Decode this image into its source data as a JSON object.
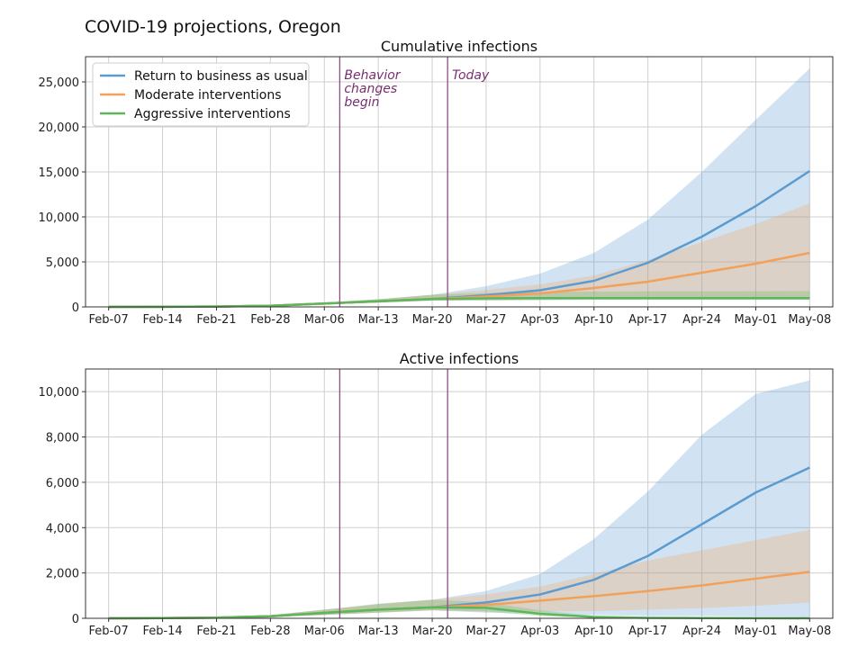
{
  "figure_title": "COVID-19 projections, Oregon",
  "colors": {
    "return_to_business": "#5b9bd0",
    "moderate": "#f3a05a",
    "aggressive": "#5fb65a",
    "event_line": "#8e4f86"
  },
  "chart_data": [
    {
      "type": "line",
      "title": "Cumulative infections",
      "xlabel": "",
      "ylabel": "",
      "x_tick_labels": [
        "Feb-07",
        "Feb-14",
        "Feb-21",
        "Feb-28",
        "Mar-06",
        "Mar-13",
        "Mar-20",
        "Mar-27",
        "Apr-03",
        "Apr-10",
        "Apr-17",
        "Apr-24",
        "May-01",
        "May-08"
      ],
      "xlim": [
        -3,
        94
      ],
      "ylim": [
        0,
        27800
      ],
      "y_ticks": [
        0,
        5000,
        10000,
        15000,
        20000,
        25000
      ],
      "y_tick_labels": [
        "0",
        "5,000",
        "10,000",
        "15,000",
        "20,000",
        "25,000"
      ],
      "x": [
        0,
        7,
        14,
        21,
        28,
        35,
        42,
        49,
        56,
        63,
        70,
        77,
        84,
        91
      ],
      "grid": true,
      "legend": {
        "position": "top-left"
      },
      "annotations": [
        {
          "x": 30,
          "label_lines": [
            "Behavior",
            "changes",
            "begin"
          ]
        },
        {
          "x": 44,
          "label_lines": [
            "Today"
          ]
        }
      ],
      "series": [
        {
          "name": "Return to business as usual",
          "color_key": "return_to_business",
          "values": [
            0,
            10,
            40,
            120,
            380,
            620,
            880,
            1300,
            1850,
            2900,
            4900,
            7800,
            11200,
            15100
          ],
          "lower": [
            0,
            8,
            30,
            90,
            300,
            480,
            700,
            700,
            750,
            800,
            800,
            800,
            800,
            800
          ],
          "upper": [
            0,
            14,
            60,
            180,
            480,
            850,
            1350,
            2300,
            3700,
            6000,
            9700,
            15000,
            20800,
            26500
          ]
        },
        {
          "name": "Moderate interventions",
          "color_key": "moderate",
          "values": [
            0,
            10,
            40,
            120,
            380,
            620,
            880,
            1150,
            1500,
            2100,
            2800,
            3800,
            4800,
            6000
          ],
          "lower": [
            0,
            8,
            30,
            90,
            300,
            480,
            700,
            750,
            800,
            850,
            900,
            900,
            950,
            950
          ],
          "upper": [
            0,
            14,
            60,
            180,
            480,
            850,
            1350,
            1900,
            2500,
            3500,
            5200,
            7200,
            9200,
            11500
          ]
        },
        {
          "name": "Aggressive interventions",
          "color_key": "aggressive",
          "values": [
            0,
            10,
            40,
            120,
            380,
            620,
            880,
            950,
            970,
            975,
            975,
            975,
            975,
            975
          ],
          "lower": [
            0,
            8,
            30,
            90,
            300,
            480,
            700,
            760,
            780,
            790,
            790,
            790,
            790,
            790
          ],
          "upper": [
            0,
            14,
            60,
            180,
            480,
            850,
            1350,
            1550,
            1650,
            1700,
            1720,
            1730,
            1740,
            1750
          ]
        }
      ]
    },
    {
      "type": "line",
      "title": "Active infections",
      "xlabel": "",
      "ylabel": "",
      "x_tick_labels": [
        "Feb-07",
        "Feb-14",
        "Feb-21",
        "Feb-28",
        "Mar-06",
        "Mar-13",
        "Mar-20",
        "Mar-27",
        "Apr-03",
        "Apr-10",
        "Apr-17",
        "Apr-24",
        "May-01",
        "May-08"
      ],
      "xlim": [
        -3,
        94
      ],
      "ylim": [
        0,
        11000
      ],
      "y_ticks": [
        0,
        2000,
        4000,
        6000,
        8000,
        10000
      ],
      "y_tick_labels": [
        "0",
        "2,000",
        "4,000",
        "6,000",
        "8,000",
        "10,000"
      ],
      "x": [
        0,
        7,
        14,
        21,
        28,
        35,
        42,
        49,
        56,
        63,
        70,
        77,
        84,
        91
      ],
      "grid": true,
      "annotations": [
        {
          "x": 30,
          "label_lines": []
        },
        {
          "x": 44,
          "label_lines": []
        }
      ],
      "series": [
        {
          "name": "Return to business as usual",
          "color_key": "return_to_business",
          "values": [
            0,
            10,
            30,
            90,
            240,
            380,
            480,
            700,
            1050,
            1700,
            2750,
            4150,
            5550,
            6650
          ],
          "lower": [
            0,
            5,
            20,
            60,
            150,
            250,
            350,
            250,
            200,
            150,
            100,
            100,
            80,
            50
          ],
          "upper": [
            0,
            15,
            50,
            140,
            380,
            620,
            820,
            1200,
            1950,
            3500,
            5600,
            8100,
            9900,
            10500
          ]
        },
        {
          "name": "Moderate interventions",
          "color_key": "moderate",
          "values": [
            0,
            10,
            30,
            90,
            240,
            380,
            480,
            590,
            780,
            980,
            1200,
            1450,
            1750,
            2050
          ],
          "lower": [
            0,
            5,
            20,
            60,
            150,
            250,
            350,
            300,
            300,
            320,
            380,
            450,
            550,
            700
          ],
          "upper": [
            0,
            15,
            50,
            140,
            380,
            620,
            820,
            1050,
            1400,
            1950,
            2550,
            3000,
            3450,
            3900
          ]
        },
        {
          "name": "Aggressive interventions",
          "color_key": "aggressive",
          "values": [
            0,
            10,
            30,
            90,
            240,
            380,
            480,
            460,
            200,
            60,
            20,
            10,
            5,
            2
          ],
          "lower": [
            0,
            5,
            20,
            60,
            150,
            250,
            350,
            300,
            100,
            20,
            5,
            2,
            1,
            0
          ],
          "upper": [
            0,
            15,
            50,
            140,
            380,
            650,
            820,
            700,
            350,
            120,
            40,
            20,
            10,
            5
          ]
        }
      ]
    }
  ]
}
